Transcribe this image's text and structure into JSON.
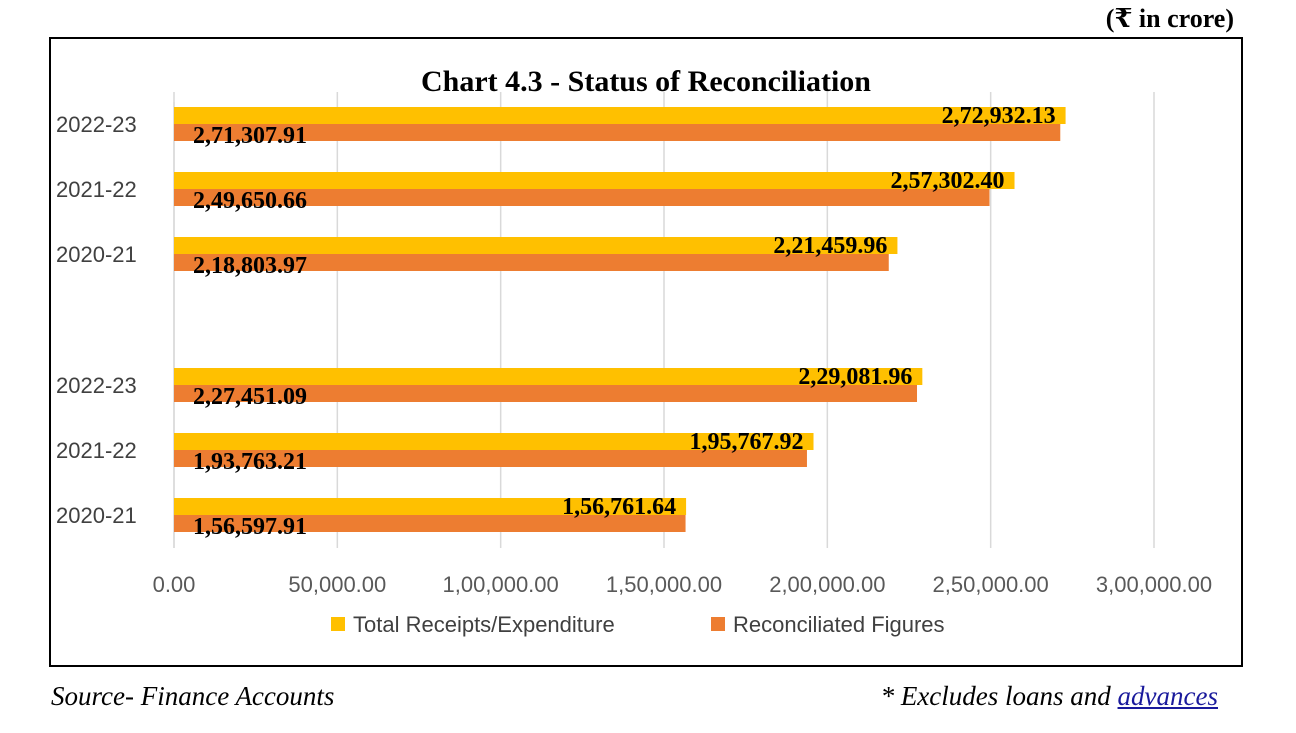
{
  "unit_note": "(₹ in crore)",
  "footer": {
    "source": "Source- Finance Accounts",
    "note_prefix": "* Excludes loans and ",
    "note_link": "advances"
  },
  "colors": {
    "total": "#FFC000",
    "reconciled": "#ED7D31",
    "grid": "#D9D9D9"
  },
  "chart_data": {
    "type": "bar",
    "orientation": "horizontal",
    "title": "Chart 4.3 - Status of Reconciliation",
    "categories": [
      "2022-23",
      "2021-22",
      "2020-21",
      "",
      "2022-23",
      "2021-22",
      "2020-21"
    ],
    "series": [
      {
        "name": "Total Receipts/Expenditure",
        "values": [
          272932.13,
          257302.4,
          221459.96,
          null,
          229081.96,
          195767.92,
          156761.64
        ],
        "labels": [
          "2,72,932.13",
          "2,57,302.40",
          "2,21,459.96",
          "",
          "2,29,081.96",
          "1,95,767.92",
          "1,56,761.64"
        ]
      },
      {
        "name": "Reconciliated Figures",
        "values": [
          271307.91,
          249650.66,
          218803.97,
          null,
          227451.09,
          193763.21,
          156597.91
        ],
        "labels": [
          "2,71,307.91",
          "2,49,650.66",
          "2,18,803.97",
          "",
          "2,27,451.09",
          "1,93,763.21",
          "1,56,597.91"
        ]
      }
    ],
    "xlim": [
      0,
      300000
    ],
    "xticks": [
      "0.00",
      "50,000.00",
      "1,00,000.00",
      "1,50,000.00",
      "2,00,000.00",
      "2,50,000.00",
      "3,00,000.00"
    ],
    "grid": true,
    "legend_position": "bottom"
  }
}
